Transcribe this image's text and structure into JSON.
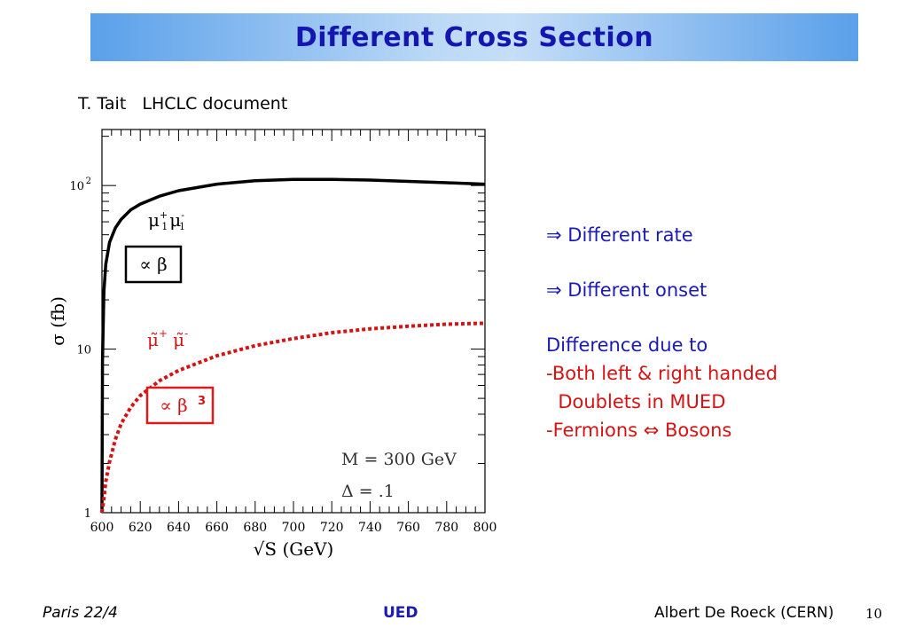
{
  "slide": {
    "title": "Different Cross Section",
    "source": "T. Tait   LHCLC document"
  },
  "chart_data": {
    "type": "line",
    "xlabel": "√S (GeV)",
    "ylabel": "σ (fb)",
    "xlim": [
      600,
      800
    ],
    "ylim": [
      1,
      220
    ],
    "yscale": "log",
    "x_ticks": [
      "600",
      "620",
      "640",
      "660",
      "680",
      "700",
      "720",
      "740",
      "760",
      "780",
      "800"
    ],
    "y_ticks": [
      {
        "value": 1,
        "label": "1"
      },
      {
        "value": 10,
        "label": "10"
      },
      {
        "value": 100,
        "label": "10 2"
      }
    ],
    "series": [
      {
        "name": "μ1+ μ1-",
        "color": "#000000",
        "style": "solid",
        "x": [
          600,
          600.3,
          601,
          602,
          604,
          607,
          610,
          615,
          620,
          630,
          640,
          660,
          680,
          700,
          720,
          740,
          760,
          780,
          800
        ],
        "y": [
          1.0,
          8.5,
          22.5,
          33,
          45,
          55,
          62,
          71,
          77,
          86,
          93,
          102,
          107,
          109,
          109,
          108,
          106,
          104,
          102
        ]
      },
      {
        "name": "μ̃+ μ̃-",
        "color": "#d41414",
        "style": "dashed",
        "x": [
          600,
          601,
          602,
          604,
          607,
          610,
          615,
          620,
          630,
          640,
          660,
          680,
          700,
          720,
          740,
          760,
          780,
          800
        ],
        "y": [
          1.0,
          1.22,
          1.55,
          2.05,
          2.8,
          3.5,
          4.4,
          5.2,
          6.4,
          7.4,
          9.1,
          10.5,
          11.6,
          12.6,
          13.3,
          13.8,
          14.2,
          14.4
        ]
      }
    ],
    "annotations": {
      "black_label_sup": "+",
      "black_label_sub": "1",
      "black_label_sup2": "-",
      "black_box": "∝ β",
      "red_box": "∝ β",
      "red_box_exp": "3",
      "mass": "M = 300 GeV",
      "delta": "Δ = .1"
    },
    "grid": false,
    "legend": "none"
  },
  "notes": {
    "line1": "⇒ Different rate",
    "line2": "⇒ Different onset",
    "line3": "Difference due to",
    "line4": "-Both left & right handed",
    "line5": "  Doublets in MUED",
    "line6": "-Fermions ⇔ Bosons"
  },
  "footer": {
    "left": "Paris  22/4",
    "center": "UED",
    "right": "Albert De Roeck (CERN)",
    "page": "10"
  }
}
